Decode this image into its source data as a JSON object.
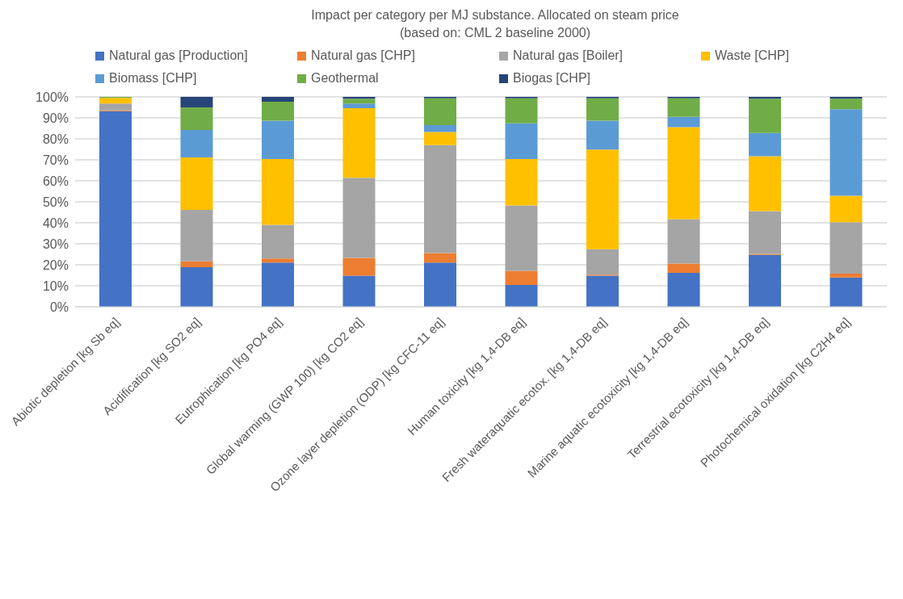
{
  "chart_data": {
    "type": "bar",
    "stacked": true,
    "title": "Impact per category per MJ substance. Allocated on steam price",
    "subtitle": "(based on: CML 2 baseline 2000)",
    "categories": [
      "Abiotic depletion [kg Sb eq]",
      "Acidification [kg SO2 eq]",
      "Eutrophication [kg PO4 eq]",
      "Global warming (GWP 100) [kg CO2 eq]",
      "Ozone layer depletion (ODP) [kg CFC-11 eq]",
      "Human toxicity [kg 1,4-DB eq]",
      "Fresh wateraquatic ecotox. [kg 1,4-DB eq]",
      "Marine aquatic ecotoxicity [kg 1,4-DB eq]",
      "Terrestrial ecotoxicity [kg 1,4-DB eq]",
      "Photochemical oxidation [kg C2H4 eq]"
    ],
    "series": [
      {
        "name": "Natural gas [Production]",
        "color": "#4472c4",
        "values": [
          93.2,
          18.8,
          21.1,
          14.8,
          21.1,
          10.4,
          14.8,
          16.2,
          24.7,
          13.9
        ]
      },
      {
        "name": "Natural gas [CHP]",
        "color": "#ed7d31",
        "values": [
          0.4,
          2.8,
          1.9,
          8.5,
          4.5,
          6.7,
          0.5,
          4.4,
          0.5,
          1.9
        ]
      },
      {
        "name": "Natural gas [Boiler]",
        "color": "#a5a5a5",
        "values": [
          3.2,
          24.6,
          16,
          38.1,
          51.4,
          31.2,
          12.1,
          21.1,
          20.4,
          24.5
        ]
      },
      {
        "name": "Waste [CHP]",
        "color": "#ffc000",
        "values": [
          2.7,
          25,
          31.4,
          33.2,
          6.3,
          22.1,
          47.5,
          43.9,
          26.1,
          12.6
        ]
      },
      {
        "name": "Biomass [CHP]",
        "color": "#5b9bd5",
        "values": [
          0,
          13,
          18.3,
          2.2,
          3.2,
          17,
          13.8,
          4.9,
          11.1,
          41.2
        ]
      },
      {
        "name": "Geothermal",
        "color": "#70ad47",
        "values": [
          0.5,
          10.8,
          9,
          2.3,
          12.8,
          11.9,
          10.6,
          8.8,
          16.3,
          5
        ]
      },
      {
        "name": "Biogas [CHP]",
        "color": "#264478",
        "values": [
          0,
          5,
          2.3,
          0.9,
          0.7,
          0.7,
          0.7,
          0.7,
          0.9,
          0.9
        ]
      }
    ],
    "ylim": [
      0,
      100
    ],
    "yticks": [
      {
        "value": 0,
        "label": "0%"
      },
      {
        "value": 10,
        "label": "10%"
      },
      {
        "value": 20,
        "label": "20%"
      },
      {
        "value": 30,
        "label": "30%"
      },
      {
        "value": 40,
        "label": "40%"
      },
      {
        "value": 50,
        "label": "50%"
      },
      {
        "value": 60,
        "label": "60%"
      },
      {
        "value": 70,
        "label": "70%"
      },
      {
        "value": 80,
        "label": "80%"
      },
      {
        "value": 90,
        "label": "90%"
      },
      {
        "value": 100,
        "label": "100%"
      }
    ],
    "grid": "y",
    "legend": "top left"
  }
}
